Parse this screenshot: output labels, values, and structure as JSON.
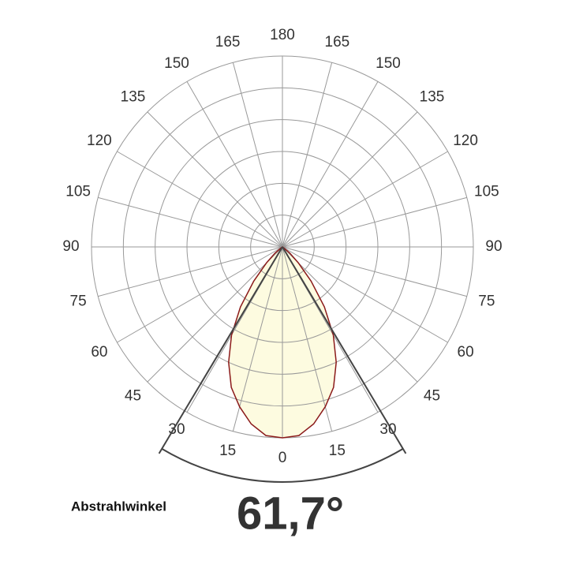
{
  "chart_data": {
    "type": "polar",
    "angle_ticks": [
      0,
      15,
      30,
      45,
      60,
      75,
      90,
      105,
      120,
      135,
      150,
      165,
      180
    ],
    "rlim": [
      0,
      120
    ],
    "rticks": [
      20,
      40,
      60,
      80,
      100,
      120
    ],
    "grid": true,
    "theta": [
      -60,
      -55,
      -50,
      -45,
      -40,
      -35,
      -30,
      -25,
      -20,
      -15,
      -10,
      -5,
      0,
      5,
      10,
      15,
      20,
      25,
      30,
      35,
      40,
      45,
      50,
      55,
      60
    ],
    "values": [
      0,
      1,
      6,
      14,
      28,
      46,
      64,
      80,
      94,
      104,
      113,
      119,
      120,
      119,
      113,
      104,
      94,
      80,
      64,
      46,
      28,
      14,
      6,
      1,
      0
    ],
    "color": "#8b1a1a",
    "fill": "#fdfbe0",
    "beam_label": "Abstrahlwinkel",
    "beam_angle": {
      "value": 61.7,
      "label": "61,7°"
    }
  }
}
